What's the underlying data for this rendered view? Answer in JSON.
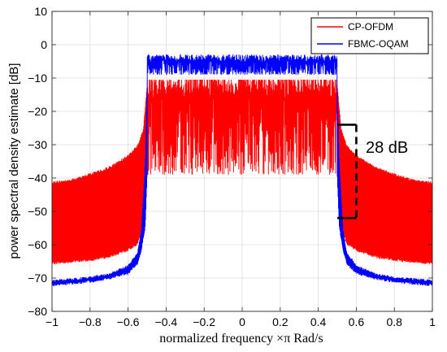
{
  "chart_data": {
    "type": "line",
    "title": "",
    "xlabel": "normalized frequency ×π Rad/s",
    "ylabel": "power spectral density estimate [dB]",
    "xlim": [
      -1,
      1
    ],
    "ylim": [
      -80,
      10
    ],
    "xticks": [
      -1,
      -0.8,
      -0.6,
      -0.4,
      -0.2,
      0,
      0.2,
      0.4,
      0.6,
      0.8,
      1
    ],
    "xtick_labels": [
      "−1",
      "−0.8",
      "−0.6",
      "−0.4",
      "−0.2",
      "0",
      "0.2",
      "0.4",
      "0.6",
      "0.8",
      "1"
    ],
    "yticks": [
      10,
      0,
      -10,
      -20,
      -30,
      -40,
      -50,
      -60,
      -70,
      -80
    ],
    "ytick_labels": [
      "10",
      "0",
      "−10",
      "−20",
      "−30",
      "−40",
      "−50",
      "−60",
      "−70",
      "−80"
    ],
    "grid": true,
    "legend_position": "top-right",
    "series": [
      {
        "name": "CP-OFDM",
        "color": "#ff0000",
        "passband_upper_db": -12,
        "passband_lower_db": -39,
        "band_edge": 0.5,
        "upper_envelope": {
          "x": [
            0.5,
            0.52,
            0.55,
            0.6,
            0.7,
            0.8,
            0.9,
            1.0
          ],
          "y": [
            -12,
            -25,
            -30,
            -33,
            -36.5,
            -38.5,
            -40.3,
            -41
          ]
        },
        "lower_envelope": {
          "x": [
            0.5,
            0.52,
            0.55,
            0.6,
            0.7,
            0.8,
            0.9,
            1.0
          ],
          "y": [
            -40,
            -55,
            -60,
            -62,
            -64,
            -65,
            -65.5,
            -66
          ]
        }
      },
      {
        "name": "FBMC-OQAM",
        "color": "#0000ff",
        "passband_upper_db": -4,
        "passband_lower_db": -9,
        "band_edge": 0.5,
        "upper_envelope": {
          "x": [
            0.5,
            0.51,
            0.53,
            0.55,
            0.6,
            0.7,
            0.8,
            1.0
          ],
          "y": [
            -12,
            -35,
            -55,
            -62,
            -66,
            -68.5,
            -69.5,
            -70.5
          ]
        },
        "lower_envelope": {
          "x": [
            0.5,
            0.51,
            0.53,
            0.55,
            0.6,
            0.7,
            0.8,
            1.0
          ],
          "y": [
            -40,
            -55,
            -62,
            -66,
            -69,
            -70.5,
            -71.5,
            -72.5
          ]
        }
      }
    ],
    "annotation": {
      "text": "28 dB",
      "bracket_x": [
        0.5,
        0.6
      ],
      "bracket_y": [
        -24,
        -52
      ]
    }
  }
}
